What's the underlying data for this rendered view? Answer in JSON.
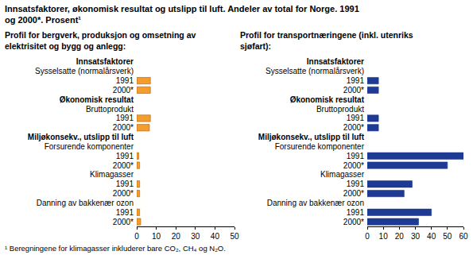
{
  "title": "Innsatsfaktorer, økonomisk resultat og utslipp til luft. Andeler av total for Norge. 1991 og 2000*. Prosent¹",
  "footnote": "¹ Beregningene for klimagasser inkluderer bare CO₂, CH₄ og N₂O.",
  "chart_data": [
    {
      "type": "bar",
      "orientation": "horizontal",
      "title": "Profil for bergverk, produksjon og omsetning av elektrisitet og bygg og anlegg:",
      "color": "#f59c2f",
      "grid": false,
      "xlim": [
        0,
        50
      ],
      "xticks": [
        0,
        10,
        20,
        30,
        40,
        50
      ],
      "groups": [
        {
          "name": "Innsatsfaktorer",
          "subgroups": [
            {
              "name": "Sysselsatte (normalårsverk)",
              "categories": [
                "1991",
                "2000*"
              ],
              "values": [
                7,
                7
              ]
            }
          ]
        },
        {
          "name": "Økonomisk resultat",
          "subgroups": [
            {
              "name": "Bruttoprodukt",
              "categories": [
                "1991",
                "2000*"
              ],
              "values": [
                7,
                6.5
              ]
            }
          ]
        },
        {
          "name": "Miljøkonsekv., utslipp til luft",
          "subgroups": [
            {
              "name": "Forsurende komponenter",
              "categories": [
                "1991",
                "2000*"
              ],
              "values": [
                1,
                1.5
              ]
            },
            {
              "name": "Klimagasser",
              "categories": [
                "1991",
                "2000*"
              ],
              "values": [
                1.5,
                1.5
              ]
            },
            {
              "name": "Danning av bakkenær ozon",
              "categories": [
                "1991",
                "2000*"
              ],
              "values": [
                1.5,
                2
              ]
            }
          ]
        }
      ]
    },
    {
      "type": "bar",
      "orientation": "horizontal",
      "title": "Profil for transportnæringene (inkl. utenriks sjøfart):",
      "color": "#1f3a93",
      "grid": false,
      "xlim": [
        0,
        60
      ],
      "xticks": [
        0,
        10,
        20,
        30,
        40,
        50,
        60
      ],
      "groups": [
        {
          "name": "Innsatsfaktorer",
          "subgroups": [
            {
              "name": "Sysselsatte (normalårsverk)",
              "categories": [
                "1991",
                "2000*"
              ],
              "values": [
                7,
                7
              ]
            }
          ]
        },
        {
          "name": "Økonomisk resultat",
          "subgroups": [
            {
              "name": "Bruttoprodukt",
              "categories": [
                "1991",
                "2000*"
              ],
              "values": [
                7,
                7
              ]
            }
          ]
        },
        {
          "name": "Miljøkonsekv., utslipp til luft",
          "subgroups": [
            {
              "name": "Forsurende komponenter",
              "categories": [
                "1991",
                "2000*"
              ],
              "values": [
                60,
                50
              ]
            },
            {
              "name": "Klimagasser",
              "categories": [
                "1991",
                "2000*"
              ],
              "values": [
                28,
                23
              ]
            },
            {
              "name": "Danning av bakkenær ozon",
              "categories": [
                "1991",
                "2000*"
              ],
              "values": [
                40,
                32
              ]
            }
          ]
        }
      ]
    }
  ]
}
